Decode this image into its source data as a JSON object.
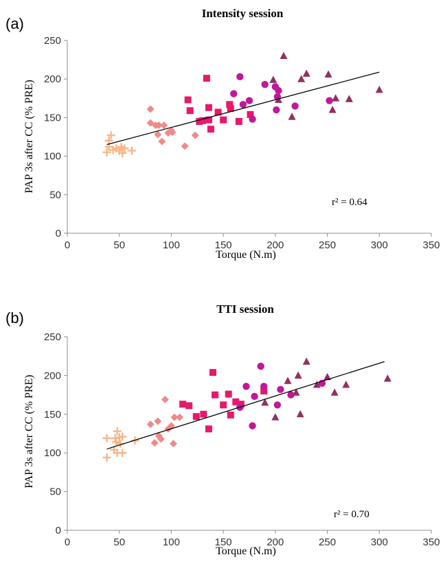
{
  "colors": {
    "plus": "#F6B68A",
    "diamond": "#EF8A86",
    "square": "#E8186A",
    "circle": "#C2179A",
    "triangle": "#93305F",
    "axis": "#8C8C8C",
    "trend": "#000000"
  },
  "chart_data": [
    {
      "type": "scatter",
      "panel_label": "(a)",
      "title": "Intensity session",
      "xlabel": "Torque (N.m)",
      "ylabel": "PAP 3s after CC (% PRE)",
      "xlim": [
        0,
        350
      ],
      "ylim": [
        0,
        250
      ],
      "x_ticks": [
        "0",
        "50",
        "100",
        "150",
        "200",
        "250",
        "300",
        "350"
      ],
      "y_ticks": [
        "0",
        "50",
        "100",
        "150",
        "200",
        "250"
      ],
      "annotation": "r² = 0.64",
      "trendline": [
        [
          38,
          115
        ],
        [
          300,
          209
        ]
      ],
      "series": [
        {
          "marker": "plus",
          "points": [
            [
              38,
              105
            ],
            [
              40,
              112
            ],
            [
              40,
              120
            ],
            [
              42,
              127
            ],
            [
              44,
              108
            ],
            [
              47,
              110
            ],
            [
              50,
              107
            ],
            [
              52,
              112
            ],
            [
              53,
              104
            ],
            [
              55,
              110
            ],
            [
              62,
              107
            ]
          ]
        },
        {
          "marker": "diamond",
          "points": [
            [
              80,
              143
            ],
            [
              80,
              161
            ],
            [
              85,
              140
            ],
            [
              87,
              128
            ],
            [
              88,
              140
            ],
            [
              91,
              119
            ],
            [
              93,
              140
            ],
            [
              97,
              130
            ],
            [
              100,
              133
            ],
            [
              101,
              131
            ],
            [
              113,
              113
            ],
            [
              123,
              127
            ]
          ]
        },
        {
          "marker": "square",
          "points": [
            [
              116,
              173
            ],
            [
              118,
              159
            ],
            [
              127,
              145
            ],
            [
              130,
              146
            ],
            [
              134,
              201
            ],
            [
              136,
              163
            ],
            [
              136,
              147
            ],
            [
              138,
              135
            ],
            [
              145,
              157
            ],
            [
              150,
              147
            ],
            [
              156,
              167
            ],
            [
              157,
              162
            ],
            [
              165,
              145
            ],
            [
              176,
              154
            ]
          ]
        },
        {
          "marker": "circle",
          "points": [
            [
              160,
              181
            ],
            [
              166,
              203
            ],
            [
              169,
              167
            ],
            [
              175,
              172
            ],
            [
              178,
              148
            ],
            [
              190,
              193
            ],
            [
              200,
              190
            ],
            [
              201,
              160
            ],
            [
              202,
              177
            ],
            [
              203,
              185
            ],
            [
              219,
              165
            ],
            [
              252,
              172
            ]
          ]
        },
        {
          "marker": "triangle",
          "points": [
            [
              198,
              199
            ],
            [
              203,
              173
            ],
            [
              208,
              230
            ],
            [
              216,
              151
            ],
            [
              225,
              200
            ],
            [
              230,
              207
            ],
            [
              251,
              206
            ],
            [
              255,
              160
            ],
            [
              258,
              175
            ],
            [
              271,
              174
            ],
            [
              300,
              186
            ]
          ]
        }
      ]
    },
    {
      "type": "scatter",
      "panel_label": "(b)",
      "title": "TTI session",
      "xlabel": "Torque (N.m)",
      "ylabel": "PAP 3s after CC (% PRE)",
      "xlim": [
        0,
        350
      ],
      "ylim": [
        0,
        250
      ],
      "x_ticks": [
        "0",
        "50",
        "100",
        "150",
        "200",
        "250",
        "300",
        "350"
      ],
      "y_ticks": [
        "0",
        "50",
        "100",
        "150",
        "200",
        "250"
      ],
      "annotation": "r² = 0.70",
      "trendline": [
        [
          38,
          105
        ],
        [
          305,
          218
        ]
      ],
      "series": [
        {
          "marker": "plus",
          "points": [
            [
              38,
              94
            ],
            [
              38,
              119
            ],
            [
              45,
              104
            ],
            [
              46,
              119
            ],
            [
              47,
              114
            ],
            [
              48,
              128
            ],
            [
              48,
              100
            ],
            [
              50,
              120
            ],
            [
              51,
              112
            ],
            [
              53,
              121
            ],
            [
              53,
              100
            ],
            [
              65,
              116
            ]
          ]
        },
        {
          "marker": "diamond",
          "points": [
            [
              80,
              137
            ],
            [
              84,
              113
            ],
            [
              87,
              141
            ],
            [
              88,
              122
            ],
            [
              90,
              118
            ],
            [
              94,
              169
            ],
            [
              97,
              131
            ],
            [
              100,
              135
            ],
            [
              102,
              112
            ],
            [
              103,
              146
            ],
            [
              108,
              146
            ]
          ]
        },
        {
          "marker": "square",
          "points": [
            [
              111,
              163
            ],
            [
              117,
              161
            ],
            [
              124,
              147
            ],
            [
              131,
              150
            ],
            [
              136,
              131
            ],
            [
              140,
              204
            ],
            [
              142,
              175
            ],
            [
              150,
              162
            ],
            [
              155,
              176
            ],
            [
              157,
              149
            ],
            [
              162,
              166
            ],
            [
              167,
              163
            ],
            [
              189,
              180
            ]
          ]
        },
        {
          "marker": "circle",
          "points": [
            [
              166,
              159
            ],
            [
              172,
              186
            ],
            [
              178,
              135
            ],
            [
              180,
              173
            ],
            [
              186,
              212
            ],
            [
              189,
              186
            ],
            [
              202,
              162
            ],
            [
              205,
              182
            ],
            [
              215,
              175
            ],
            [
              245,
              190
            ]
          ]
        },
        {
          "marker": "triangle",
          "points": [
            [
              190,
              165
            ],
            [
              200,
              146
            ],
            [
              212,
              193
            ],
            [
              220,
              178
            ],
            [
              222,
              200
            ],
            [
              224,
              150
            ],
            [
              230,
              218
            ],
            [
              240,
              188
            ],
            [
              250,
              198
            ],
            [
              257,
              178
            ],
            [
              268,
              188
            ],
            [
              308,
              196
            ]
          ]
        }
      ]
    }
  ]
}
